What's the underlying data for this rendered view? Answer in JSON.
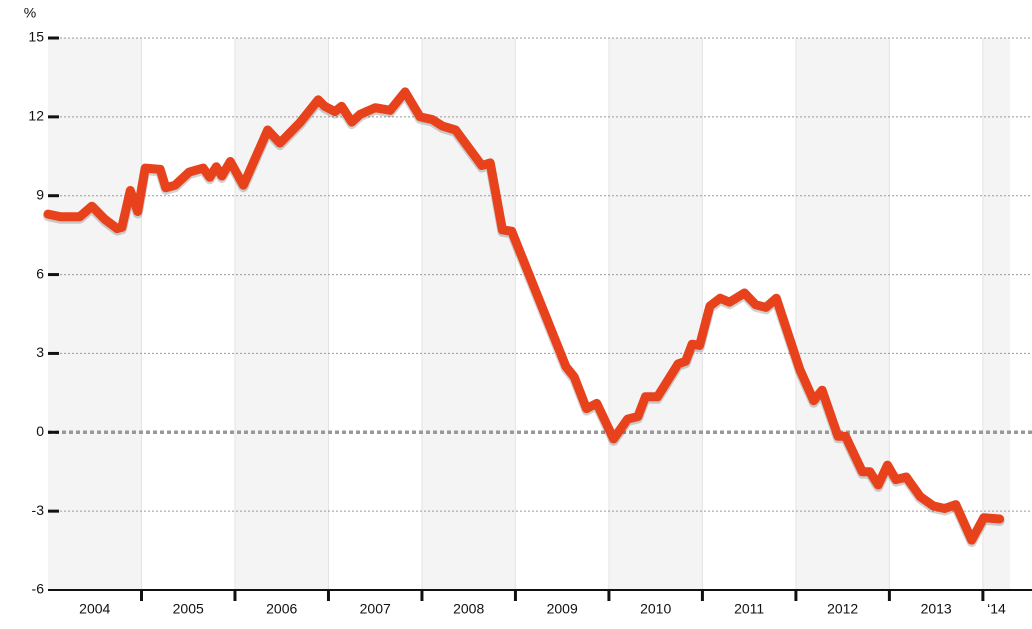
{
  "chart_data": {
    "type": "line",
    "y_label": "%",
    "categories": [
      "2004",
      "2005",
      "2006",
      "2007",
      "2008",
      "2009",
      "2010",
      "2011",
      "2012",
      "2013",
      "‘14"
    ],
    "xlim": [
      2004,
      2014.29
    ],
    "xticks": [
      2005,
      2006,
      2007,
      2008,
      2009,
      2010,
      2011,
      2012,
      2013,
      2014
    ],
    "ylim": [
      -6,
      15
    ],
    "yticks": [
      15,
      12,
      9,
      6,
      3,
      0,
      -3,
      -6
    ],
    "grid": true,
    "series": [
      {
        "color": "#e8421c",
        "x": [
          2004.0,
          2004.13,
          2004.34,
          2004.47,
          2004.61,
          2004.74,
          2004.79,
          2004.88,
          2004.96,
          2005.04,
          2005.2,
          2005.26,
          2005.36,
          2005.51,
          2005.66,
          2005.73,
          2005.8,
          2005.86,
          2005.95,
          2006.09,
          2006.35,
          2006.48,
          2006.7,
          2006.89,
          2006.96,
          2007.07,
          2007.14,
          2007.25,
          2007.34,
          2007.5,
          2007.66,
          2007.82,
          2007.98,
          2008.11,
          2008.22,
          2008.36,
          2008.64,
          2008.73,
          2008.86,
          2008.96,
          2009.54,
          2009.63,
          2009.76,
          2009.87,
          2010.05,
          2010.2,
          2010.31,
          2010.39,
          2010.52,
          2010.74,
          2010.82,
          2010.89,
          2010.97,
          2011.08,
          2011.19,
          2011.29,
          2011.45,
          2011.57,
          2011.68,
          2011.79,
          2012.04,
          2012.19,
          2012.28,
          2012.45,
          2012.53,
          2012.71,
          2012.79,
          2012.88,
          2012.98,
          2013.07,
          2013.18,
          2013.33,
          2013.47,
          2013.59,
          2013.71,
          2013.88,
          2014.01,
          2014.18
        ],
        "values": [
          8.3,
          8.2,
          8.2,
          8.6,
          8.1,
          7.75,
          7.8,
          9.2,
          8.4,
          10.05,
          10.0,
          9.3,
          9.4,
          9.9,
          10.05,
          9.7,
          10.1,
          9.75,
          10.3,
          9.4,
          11.5,
          11.0,
          11.8,
          12.65,
          12.4,
          12.2,
          12.4,
          11.8,
          12.1,
          12.35,
          12.25,
          12.95,
          12.0,
          11.9,
          11.65,
          11.5,
          10.15,
          10.25,
          7.7,
          7.65,
          2.5,
          2.1,
          0.9,
          1.1,
          -0.25,
          0.5,
          0.6,
          1.35,
          1.35,
          2.6,
          2.7,
          3.35,
          3.3,
          4.8,
          5.1,
          4.95,
          5.3,
          4.85,
          4.75,
          5.1,
          2.4,
          1.2,
          1.6,
          -0.15,
          -0.15,
          -1.5,
          -1.5,
          -2.0,
          -1.25,
          -1.8,
          -1.7,
          -2.45,
          -2.8,
          -2.9,
          -2.75,
          -4.1,
          -3.25,
          -3.3
        ]
      }
    ]
  }
}
